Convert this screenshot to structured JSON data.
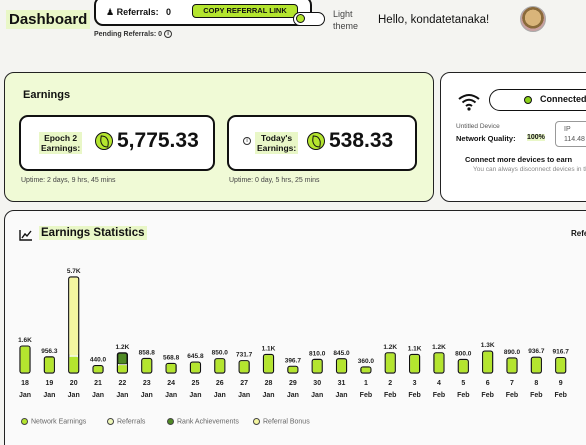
{
  "header": {
    "title": "Dashboard",
    "referrals_label": "Referrals:",
    "referrals_count": "0",
    "copy_button": "COPY REFERRAL LINK",
    "pending_label": "Pending Referrals: 0",
    "theme_label": "Light theme",
    "greeting": "Hello, kondatetanaka!"
  },
  "earnings": {
    "title": "Earnings",
    "epoch": {
      "label_line1": "Epoch 2",
      "label_line2": "Earnings:",
      "value": "5,775.33",
      "uptime": "Uptime: 2 days, 9 hrs, 45 mins"
    },
    "today": {
      "label_line1": "Today's",
      "label_line2": "Earnings:",
      "value": "538.33",
      "uptime": "Uptime: 0 day, 5 hrs, 25 mins"
    }
  },
  "device": {
    "status": "Connected",
    "name": "Untitled Device",
    "network_quality_label": "Network Quality:",
    "network_quality_value": "100%",
    "ip_label": "IP",
    "ip_value": "114.48",
    "connect_more": "Connect more devices to earn",
    "disconnect_note": "You can always disconnect devices in the tab."
  },
  "colors": {
    "accent": "#b4e52f",
    "referrals": "#eef7b8",
    "rank": "#4f8a24",
    "bonus": "#f4f6a0"
  },
  "stats": {
    "title": "Earnings Statistics",
    "filter_label": "Refe",
    "legend": [
      "Network Earnings",
      "Referrals",
      "Rank Achievements",
      "Referral Bonus"
    ]
  },
  "chart_data": {
    "type": "bar",
    "title": "Earnings Statistics",
    "categories": [
      {
        "day": "18",
        "month": "Jan"
      },
      {
        "day": "19",
        "month": "Jan"
      },
      {
        "day": "20",
        "month": "Jan"
      },
      {
        "day": "21",
        "month": "Jan"
      },
      {
        "day": "22",
        "month": "Jan"
      },
      {
        "day": "23",
        "month": "Jan"
      },
      {
        "day": "24",
        "month": "Jan"
      },
      {
        "day": "25",
        "month": "Jan"
      },
      {
        "day": "26",
        "month": "Jan"
      },
      {
        "day": "27",
        "month": "Jan"
      },
      {
        "day": "28",
        "month": "Jan"
      },
      {
        "day": "29",
        "month": "Jan"
      },
      {
        "day": "30",
        "month": "Jan"
      },
      {
        "day": "31",
        "month": "Jan"
      },
      {
        "day": "1",
        "month": "Feb"
      },
      {
        "day": "2",
        "month": "Feb"
      },
      {
        "day": "3",
        "month": "Feb"
      },
      {
        "day": "4",
        "month": "Feb"
      },
      {
        "day": "5",
        "month": "Feb"
      },
      {
        "day": "6",
        "month": "Feb"
      },
      {
        "day": "7",
        "month": "Feb"
      },
      {
        "day": "8",
        "month": "Feb"
      },
      {
        "day": "9",
        "month": "Feb"
      }
    ],
    "value_labels": [
      "1.6K",
      "956.3",
      "5.7K",
      "440.0",
      "1.2K",
      "858.8",
      "568.8",
      "645.8",
      "850.0",
      "731.7",
      "1.1K",
      "396.7",
      "810.0",
      "845.0",
      "360.0",
      "1.2K",
      "1.1K",
      "1.2K",
      "800.0",
      "1.3K",
      "890.0",
      "936.7",
      "916.7"
    ],
    "series": [
      {
        "name": "Network Earnings",
        "values": [
          1600,
          956.3,
          1000,
          440,
          500,
          858.8,
          568.8,
          645.8,
          850,
          731.7,
          1100,
          396.7,
          810,
          845,
          360,
          1200,
          1100,
          1200,
          800,
          1300,
          890,
          936.7,
          916.7
        ]
      },
      {
        "name": "Referrals",
        "values": [
          0,
          0,
          0,
          0,
          0,
          0,
          0,
          0,
          0,
          0,
          0,
          0,
          0,
          0,
          0,
          0,
          0,
          0,
          0,
          0,
          0,
          0,
          0
        ]
      },
      {
        "name": "Rank Achievements",
        "values": [
          0,
          0,
          0,
          0,
          700,
          0,
          0,
          0,
          0,
          0,
          0,
          0,
          0,
          0,
          0,
          0,
          0,
          0,
          0,
          0,
          0,
          0,
          0
        ]
      },
      {
        "name": "Referral Bonus",
        "values": [
          0,
          0,
          4700,
          0,
          0,
          0,
          0,
          0,
          0,
          0,
          0,
          0,
          0,
          0,
          0,
          0,
          0,
          0,
          0,
          0,
          0,
          0,
          0
        ]
      }
    ],
    "ylim": [
      0,
      5700
    ],
    "grid": false,
    "legend_position": "bottom"
  }
}
